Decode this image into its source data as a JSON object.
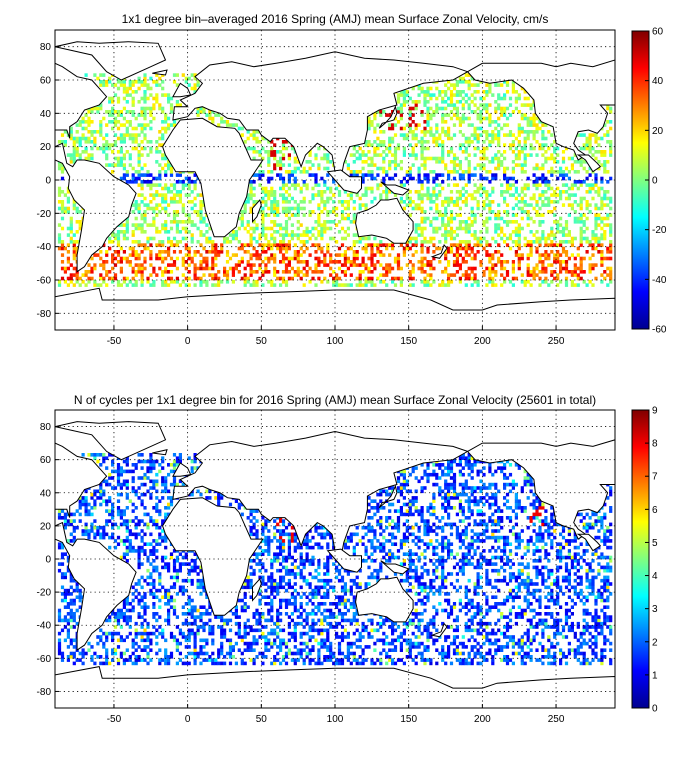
{
  "chart_data": [
    {
      "type": "heatmap",
      "title": "1x1 degree bin–averaged 2016 Spring (AMJ) mean Surface Zonal Velocity, cm/s",
      "xlabel": "",
      "ylabel": "",
      "xlim": [
        -90,
        290
      ],
      "ylim": [
        -90,
        90
      ],
      "x_ticks": [
        -50,
        0,
        50,
        100,
        150,
        200,
        250
      ],
      "y_ticks": [
        80,
        60,
        40,
        20,
        0,
        -20,
        -40,
        -60,
        -80
      ],
      "grid": true,
      "colormap": "jet",
      "colorbar": {
        "min": -60,
        "max": 60,
        "ticks": [
          60,
          40,
          20,
          0,
          -20,
          -40,
          -60
        ]
      },
      "values_description_bins": [
        {
          "lon_range": [
            -60,
            20
          ],
          "lat_range": [
            -60,
            60
          ],
          "typical_value": 5
        },
        {
          "lon_range": [
            -60,
            -40
          ],
          "lat_range": [
            -60,
            -40
          ],
          "typical_value": 35
        },
        {
          "lon_range": [
            55,
            70
          ],
          "lat_range": [
            5,
            25
          ],
          "typical_value": 50
        },
        {
          "lon_range": [
            130,
            160
          ],
          "lat_range": [
            30,
            45
          ],
          "typical_value": 50
        },
        {
          "lon_range": [
            -50,
            280
          ],
          "lat_range": [
            -2,
            4
          ],
          "typical_value": -40
        },
        {
          "lon_range": [
            0,
            280
          ],
          "lat_range": [
            -60,
            -40
          ],
          "typical_value": 25
        }
      ]
    },
    {
      "type": "heatmap",
      "title": "N of cycles per 1x1 degree bin for 2016 Spring (AMJ) mean Surface Zonal Velocity (25601 in total)",
      "xlabel": "",
      "ylabel": "",
      "xlim": [
        -90,
        290
      ],
      "ylim": [
        -90,
        90
      ],
      "x_ticks": [
        -50,
        0,
        50,
        100,
        150,
        200,
        250
      ],
      "y_ticks": [
        80,
        60,
        40,
        20,
        0,
        -20,
        -40,
        -60,
        -80
      ],
      "grid": true,
      "colormap": "jet",
      "colorbar": {
        "min": 0,
        "max": 9,
        "ticks": [
          9,
          8,
          7,
          6,
          5,
          4,
          3,
          2,
          1,
          0
        ]
      },
      "values_description_bins": [
        {
          "lon_range": [
            -60,
            280
          ],
          "lat_range": [
            -60,
            60
          ],
          "typical_value": 1
        },
        {
          "lon_range": [
            60,
            70
          ],
          "lat_range": [
            10,
            25
          ],
          "typical_value": 8
        },
        {
          "lon_range": [
            230,
            240
          ],
          "lat_range": [
            20,
            30
          ],
          "typical_value": 8
        }
      ]
    }
  ],
  "colors": {
    "jet": [
      "#00008f",
      "#0000ff",
      "#0080ff",
      "#00ffff",
      "#80ff80",
      "#ffff00",
      "#ff8000",
      "#ff0000",
      "#800000"
    ]
  }
}
